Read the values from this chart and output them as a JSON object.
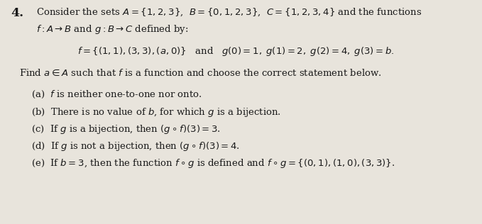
{
  "background_color": "#e8e4dc",
  "text_color": "#1a1a1a",
  "fig_width": 6.79,
  "fig_height": 3.16,
  "dpi": 100,
  "number": "4.",
  "line1a": "Consider the sets $A = \\{1, 2, 3\\}$,  $B = \\{0, 1, 2, 3\\}$,  $C = \\{1, 2, 3, 4\\}$ and the functions",
  "line1b": "$f : A \\rightarrow B$ and $g : B \\rightarrow C$ defined by:",
  "line2": "$f = \\{(1, 1), (3, 3), (a, 0)\\}$   and   $g(0) = 1,\\; g(1) = 2,\\; g(2) = 4,\\; g(3) = b.$",
  "line3": "Find $a \\in A$ such that $f$ is a function and choose the correct statement below.",
  "opt_a": "(a)  $f$ is neither one-to-one nor onto.",
  "opt_b": "(b)  There is no value of $b$, for which $g$ is a bijection.",
  "opt_c": "(c)  If $g$ is a bijection, then $(g \\circ f)(3) = 3$.",
  "opt_d": "(d)  If $g$ is not a bijection, then $(g \\circ f)(3) = 4$.",
  "opt_e": "(e)  If $b = 3$, then the function $f \\circ g$ is defined and $f \\circ g = \\{(0, 1), (1, 0), (3, 3)\\}$."
}
